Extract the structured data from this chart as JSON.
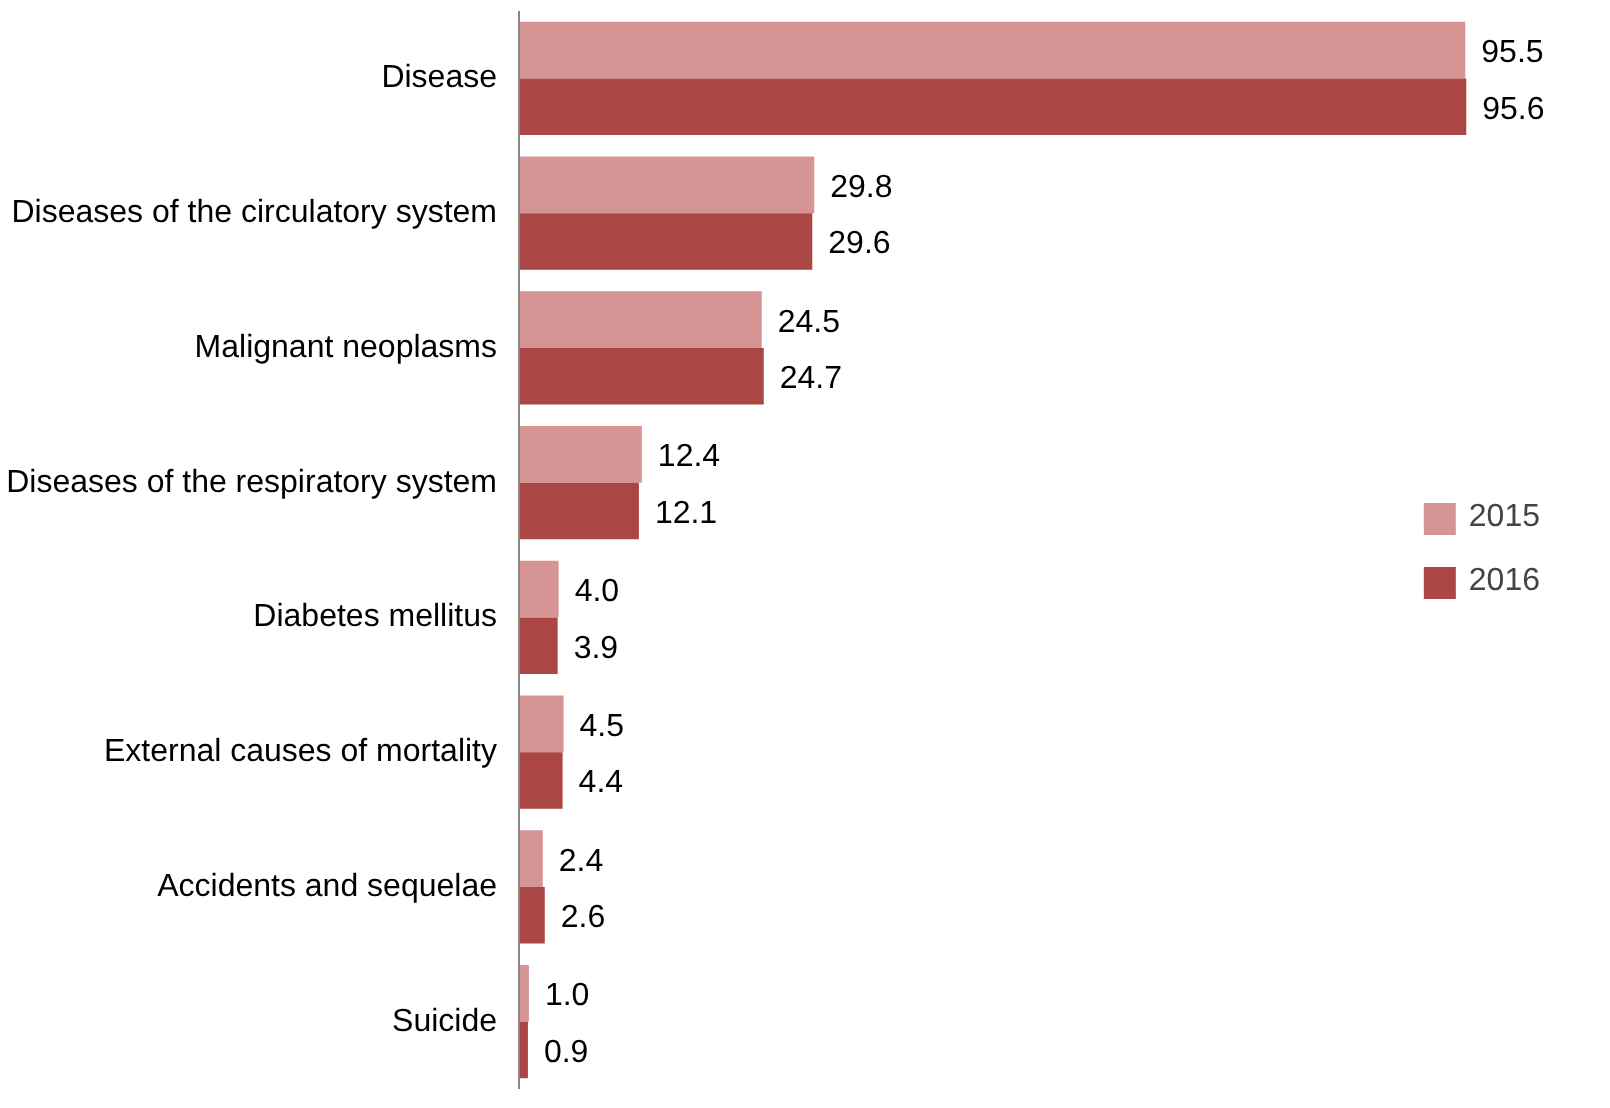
{
  "chart_data": {
    "type": "bar",
    "orientation": "horizontal",
    "legend": "right",
    "categories": [
      "Disease",
      "Diseases of the circulatory system",
      "Malignant neoplasms",
      "Diseases of the respiratory system",
      "Diabetes mellitus",
      "External causes of mortality",
      "Accidents and sequelae",
      "Suicide"
    ],
    "series": [
      {
        "name": "2015",
        "color": "#d69595",
        "values": [
          95.5,
          29.8,
          24.5,
          12.4,
          4.0,
          4.5,
          2.4,
          1.0
        ],
        "value_labels": [
          "95.5",
          "29.8",
          "24.5",
          "12.4",
          "4.0",
          "4.5",
          "2.4",
          "1.0"
        ]
      },
      {
        "name": "2016",
        "color": "#aa4643",
        "values": [
          95.6,
          29.6,
          24.7,
          12.1,
          3.9,
          4.4,
          2.6,
          0.9
        ],
        "value_labels": [
          "95.6",
          "29.6",
          "24.7",
          "12.1",
          "3.9",
          "4.4",
          "2.6",
          "0.9"
        ]
      }
    ]
  }
}
